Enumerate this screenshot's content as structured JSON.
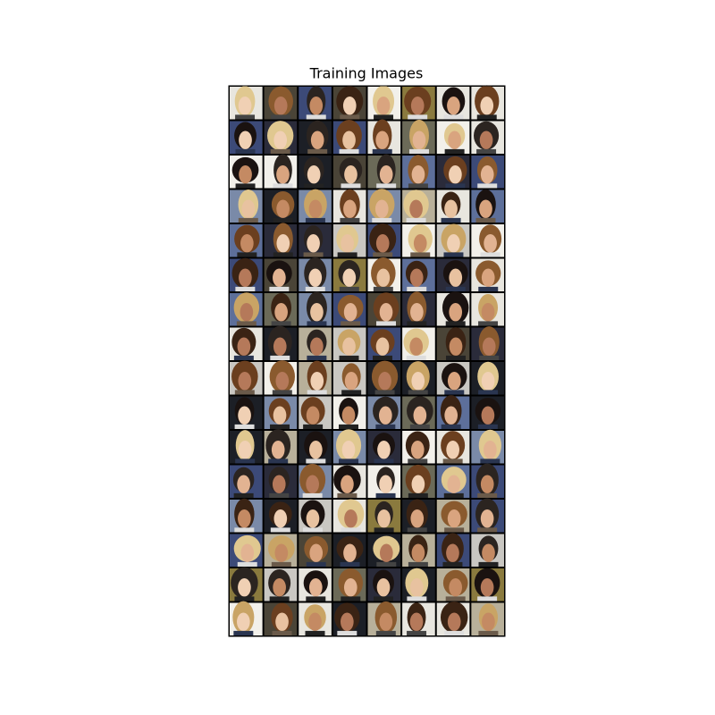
{
  "title": "Training Images"
}
